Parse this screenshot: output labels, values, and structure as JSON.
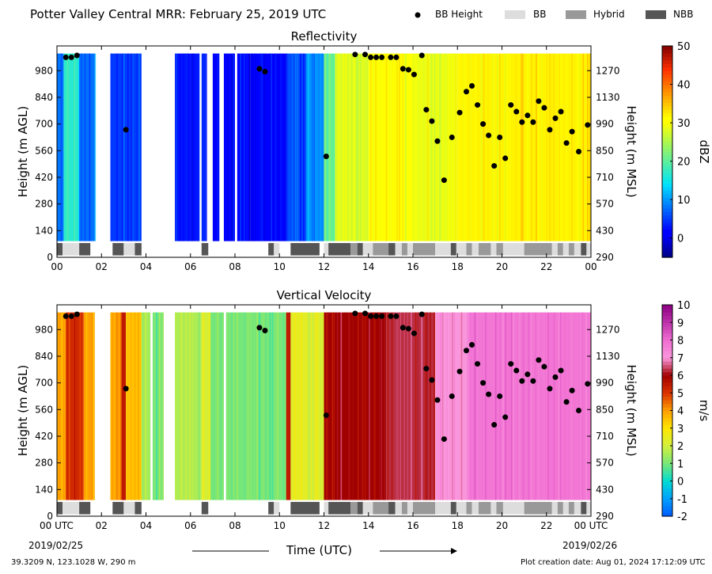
{
  "header": {
    "title": "Potter Valley Central MRR:  February 25, 2019 UTC",
    "legend": [
      {
        "label": "BB Height",
        "symbol": "dot",
        "color": "#000000"
      },
      {
        "label": "BB",
        "symbol": "box",
        "color": "#dddddd"
      },
      {
        "label": "Hybrid",
        "symbol": "box",
        "color": "#999999"
      },
      {
        "label": "NBB",
        "symbol": "box",
        "color": "#555555"
      }
    ]
  },
  "footer": {
    "location": "39.3209 N, 123.1028 W, 290 m",
    "created": "Plot creation date: Aug 01, 2024 17:12:09 UTC",
    "xlabel": "Time (UTC)",
    "start_tick": "00 UTC",
    "end_tick": "00 UTC",
    "start_date": "2019/02/25",
    "end_date": "2019/02/26"
  },
  "chart_data": [
    {
      "type": "heatmap",
      "title": "Reflectivity",
      "xlabel": "",
      "ylabel": "Height (m AGL)",
      "ylabel_right": "Height (m MSL)",
      "xlim": [
        0,
        24
      ],
      "ylim": [
        0,
        1110
      ],
      "xticks": [
        "00",
        "02",
        "04",
        "06",
        "08",
        "10",
        "12",
        "14",
        "16",
        "18",
        "20",
        "22",
        "00"
      ],
      "yticks": [
        0,
        140,
        280,
        420,
        560,
        700,
        840,
        980
      ],
      "yticks_right": [
        290,
        430,
        570,
        710,
        850,
        990,
        1130,
        1270
      ],
      "colorbar": {
        "label": "dBZ",
        "min": -5,
        "max": 50,
        "ticks": [
          0,
          10,
          20,
          30,
          40,
          50
        ]
      },
      "color_bands": [
        {
          "x": [
            0.0,
            0.3
          ],
          "value": 8
        },
        {
          "x": [
            0.3,
            1.0
          ],
          "value": 17
        },
        {
          "x": [
            1.0,
            1.7
          ],
          "value": 8
        },
        {
          "x": [
            2.4,
            3.8
          ],
          "value": 5
        },
        {
          "x": [
            5.3,
            6.4
          ],
          "value": 3
        },
        {
          "x": [
            6.5,
            6.7
          ],
          "value": 4
        },
        {
          "x": [
            7.0,
            7.3
          ],
          "value": 1
        },
        {
          "x": [
            7.5,
            8.0
          ],
          "value": 2
        },
        {
          "x": [
            8.1,
            8.7
          ],
          "value": 2
        },
        {
          "x": [
            8.7,
            9.6
          ],
          "value": 1
        },
        {
          "x": [
            9.6,
            10.3
          ],
          "value": 1
        },
        {
          "x": [
            10.3,
            11.2
          ],
          "value": 6
        },
        {
          "x": [
            11.2,
            12.0
          ],
          "value": 10
        },
        {
          "x": [
            12.0,
            12.5
          ],
          "value": 22
        },
        {
          "x": [
            12.5,
            14.0
          ],
          "value": 28
        },
        {
          "x": [
            14.0,
            16.0
          ],
          "value": 30
        },
        {
          "x": [
            16.0,
            18.0
          ],
          "value": 29
        },
        {
          "x": [
            18.0,
            24.0
          ],
          "value": 32
        }
      ],
      "data_bottom": 85,
      "bb_height": {
        "x": [
          0.4,
          0.65,
          0.9,
          3.1,
          9.1,
          9.35,
          12.1,
          13.4,
          13.85,
          14.1,
          14.35,
          14.6,
          15.0,
          15.25,
          15.55,
          15.8,
          16.05,
          16.4,
          16.6,
          16.85,
          17.1,
          17.4,
          17.75,
          18.1,
          18.4,
          18.65,
          18.9,
          19.15,
          19.4,
          19.65,
          19.9,
          20.15,
          20.4,
          20.65,
          20.9,
          21.15,
          21.4,
          21.65,
          21.9,
          22.15,
          22.4,
          22.65,
          22.9,
          23.15,
          23.45,
          23.85
        ],
        "y": [
          1050,
          1050,
          1060,
          670,
          990,
          975,
          530,
          1065,
          1065,
          1050,
          1050,
          1050,
          1050,
          1050,
          990,
          985,
          960,
          1060,
          775,
          715,
          610,
          405,
          630,
          760,
          870,
          900,
          800,
          700,
          640,
          480,
          630,
          520,
          800,
          765,
          710,
          745,
          710,
          820,
          785,
          670,
          730,
          765,
          600,
          660,
          555,
          695
        ]
      },
      "bb_type": [
        {
          "x": [
            0.0,
            0.25
          ],
          "type": "NBB"
        },
        {
          "x": [
            0.25,
            1.0
          ],
          "type": "BB"
        },
        {
          "x": [
            1.0,
            1.5
          ],
          "type": "NBB"
        },
        {
          "x": [
            2.5,
            3.0
          ],
          "type": "NBB"
        },
        {
          "x": [
            3.0,
            3.5
          ],
          "type": "BB"
        },
        {
          "x": [
            3.5,
            3.8
          ],
          "type": "NBB"
        },
        {
          "x": [
            6.5,
            6.8
          ],
          "type": "NBB"
        },
        {
          "x": [
            9.5,
            9.75
          ],
          "type": "NBB"
        },
        {
          "x": [
            9.75,
            10.0
          ],
          "type": "BB"
        },
        {
          "x": [
            10.5,
            11.8
          ],
          "type": "NBB"
        },
        {
          "x": [
            12.0,
            12.2
          ],
          "type": "BB"
        },
        {
          "x": [
            12.2,
            13.2
          ],
          "type": "NBB"
        },
        {
          "x": [
            13.2,
            13.5
          ],
          "type": "Hybrid"
        },
        {
          "x": [
            13.5,
            13.75
          ],
          "type": "NBB"
        },
        {
          "x": [
            13.75,
            14.2
          ],
          "type": "BB"
        },
        {
          "x": [
            14.2,
            14.9
          ],
          "type": "Hybrid"
        },
        {
          "x": [
            14.9,
            15.2
          ],
          "type": "NBB"
        },
        {
          "x": [
            15.2,
            15.5
          ],
          "type": "BB"
        },
        {
          "x": [
            15.5,
            15.75
          ],
          "type": "Hybrid"
        },
        {
          "x": [
            15.75,
            16.0
          ],
          "type": "BB"
        },
        {
          "x": [
            16.0,
            17.0
          ],
          "type": "Hybrid"
        },
        {
          "x": [
            17.0,
            17.7
          ],
          "type": "BB"
        },
        {
          "x": [
            17.7,
            17.95
          ],
          "type": "NBB"
        },
        {
          "x": [
            17.95,
            18.4
          ],
          "type": "BB"
        },
        {
          "x": [
            18.4,
            18.65
          ],
          "type": "Hybrid"
        },
        {
          "x": [
            18.65,
            18.95
          ],
          "type": "BB"
        },
        {
          "x": [
            18.95,
            19.5
          ],
          "type": "Hybrid"
        },
        {
          "x": [
            19.5,
            19.75
          ],
          "type": "BB"
        },
        {
          "x": [
            19.75,
            20.05
          ],
          "type": "Hybrid"
        },
        {
          "x": [
            20.05,
            21.0
          ],
          "type": "BB"
        },
        {
          "x": [
            21.0,
            22.25
          ],
          "type": "Hybrid"
        },
        {
          "x": [
            22.25,
            22.5
          ],
          "type": "BB"
        },
        {
          "x": [
            22.5,
            22.75
          ],
          "type": "Hybrid"
        },
        {
          "x": [
            22.75,
            23.0
          ],
          "type": "BB"
        },
        {
          "x": [
            23.0,
            23.25
          ],
          "type": "Hybrid"
        },
        {
          "x": [
            23.25,
            23.55
          ],
          "type": "BB"
        },
        {
          "x": [
            23.55,
            23.8
          ],
          "type": "NBB"
        },
        {
          "x": [
            23.8,
            24.0
          ],
          "type": "BB"
        }
      ]
    },
    {
      "type": "heatmap",
      "title": "Vertical Velocity",
      "xlabel": "Time (UTC)",
      "ylabel": "Height (m AGL)",
      "ylabel_right": "Height (m MSL)",
      "xlim": [
        0,
        24
      ],
      "ylim": [
        0,
        1110
      ],
      "xticks": [
        "00 UTC",
        "02",
        "04",
        "06",
        "08",
        "10",
        "12",
        "14",
        "16",
        "18",
        "20",
        "22",
        "00 UTC"
      ],
      "yticks": [
        0,
        140,
        280,
        420,
        560,
        700,
        840,
        980
      ],
      "yticks_right": [
        290,
        430,
        570,
        710,
        850,
        990,
        1130,
        1270
      ],
      "colorbar": {
        "label": "m/s",
        "min": -2,
        "max": 10,
        "ticks": [
          -2,
          -1,
          0,
          1,
          2,
          3,
          4,
          5,
          6,
          7,
          8,
          9,
          10
        ]
      },
      "color_bands": [
        {
          "x": [
            0.0,
            0.4
          ],
          "value": 4
        },
        {
          "x": [
            0.4,
            1.2
          ],
          "value": 5.2
        },
        {
          "x": [
            1.2,
            1.7
          ],
          "value": 4
        },
        {
          "x": [
            2.4,
            2.9
          ],
          "value": 4
        },
        {
          "x": [
            2.9,
            3.1
          ],
          "value": 5.5
        },
        {
          "x": [
            3.1,
            3.8
          ],
          "value": 3.5
        },
        {
          "x": [
            3.8,
            4.2
          ],
          "value": 1.5
        },
        {
          "x": [
            4.3,
            4.8
          ],
          "value": 1.0
        },
        {
          "x": [
            5.3,
            6.5
          ],
          "value": 1.6
        },
        {
          "x": [
            6.5,
            6.9
          ],
          "value": 2.2
        },
        {
          "x": [
            6.9,
            7.5
          ],
          "value": 1.0
        },
        {
          "x": [
            7.6,
            10.3
          ],
          "value": 1.0
        },
        {
          "x": [
            10.3,
            10.5
          ],
          "value": 5.5
        },
        {
          "x": [
            10.5,
            12.0
          ],
          "value": 2.4
        },
        {
          "x": [
            12.0,
            14.8
          ],
          "value": 6.0
        },
        {
          "x": [
            14.8,
            17.0
          ],
          "value": 6.3
        },
        {
          "x": [
            17.0,
            18.5
          ],
          "value": 7.0
        },
        {
          "x": [
            18.5,
            24.0
          ],
          "value": 7.8
        }
      ],
      "data_bottom": 85,
      "bb_height": {
        "x": [
          0.4,
          0.65,
          0.9,
          3.1,
          9.1,
          9.35,
          12.1,
          13.4,
          13.85,
          14.1,
          14.35,
          14.6,
          15.0,
          15.25,
          15.55,
          15.8,
          16.05,
          16.4,
          16.6,
          16.85,
          17.1,
          17.4,
          17.75,
          18.1,
          18.4,
          18.65,
          18.9,
          19.15,
          19.4,
          19.65,
          19.9,
          20.15,
          20.4,
          20.65,
          20.9,
          21.15,
          21.4,
          21.65,
          21.9,
          22.15,
          22.4,
          22.65,
          22.9,
          23.15,
          23.45,
          23.85
        ],
        "y": [
          1050,
          1050,
          1060,
          670,
          990,
          975,
          530,
          1065,
          1065,
          1050,
          1050,
          1050,
          1050,
          1050,
          990,
          985,
          960,
          1060,
          775,
          715,
          610,
          405,
          630,
          760,
          870,
          900,
          800,
          700,
          640,
          480,
          630,
          520,
          800,
          765,
          710,
          745,
          710,
          820,
          785,
          670,
          730,
          765,
          600,
          660,
          555,
          695
        ]
      },
      "bb_type": [
        {
          "x": [
            0.0,
            0.25
          ],
          "type": "NBB"
        },
        {
          "x": [
            0.25,
            1.0
          ],
          "type": "BB"
        },
        {
          "x": [
            1.0,
            1.5
          ],
          "type": "NBB"
        },
        {
          "x": [
            2.5,
            3.0
          ],
          "type": "NBB"
        },
        {
          "x": [
            3.0,
            3.5
          ],
          "type": "BB"
        },
        {
          "x": [
            3.5,
            3.8
          ],
          "type": "NBB"
        },
        {
          "x": [
            6.5,
            6.8
          ],
          "type": "NBB"
        },
        {
          "x": [
            9.5,
            9.75
          ],
          "type": "NBB"
        },
        {
          "x": [
            9.75,
            10.0
          ],
          "type": "BB"
        },
        {
          "x": [
            10.5,
            11.8
          ],
          "type": "NBB"
        },
        {
          "x": [
            12.0,
            12.2
          ],
          "type": "BB"
        },
        {
          "x": [
            12.2,
            13.2
          ],
          "type": "NBB"
        },
        {
          "x": [
            13.2,
            13.5
          ],
          "type": "Hybrid"
        },
        {
          "x": [
            13.5,
            13.75
          ],
          "type": "NBB"
        },
        {
          "x": [
            13.75,
            14.2
          ],
          "type": "BB"
        },
        {
          "x": [
            14.2,
            14.9
          ],
          "type": "Hybrid"
        },
        {
          "x": [
            14.9,
            15.2
          ],
          "type": "NBB"
        },
        {
          "x": [
            15.2,
            15.5
          ],
          "type": "BB"
        },
        {
          "x": [
            15.5,
            15.75
          ],
          "type": "Hybrid"
        },
        {
          "x": [
            15.75,
            16.0
          ],
          "type": "BB"
        },
        {
          "x": [
            16.0,
            17.0
          ],
          "type": "Hybrid"
        },
        {
          "x": [
            17.0,
            17.7
          ],
          "type": "BB"
        },
        {
          "x": [
            17.7,
            17.95
          ],
          "type": "NBB"
        },
        {
          "x": [
            17.95,
            18.4
          ],
          "type": "BB"
        },
        {
          "x": [
            18.4,
            18.65
          ],
          "type": "Hybrid"
        },
        {
          "x": [
            18.65,
            18.95
          ],
          "type": "BB"
        },
        {
          "x": [
            18.95,
            19.5
          ],
          "type": "Hybrid"
        },
        {
          "x": [
            19.5,
            19.75
          ],
          "type": "BB"
        },
        {
          "x": [
            19.75,
            20.05
          ],
          "type": "Hybrid"
        },
        {
          "x": [
            20.05,
            21.0
          ],
          "type": "BB"
        },
        {
          "x": [
            21.0,
            22.25
          ],
          "type": "Hybrid"
        },
        {
          "x": [
            22.25,
            22.5
          ],
          "type": "BB"
        },
        {
          "x": [
            22.5,
            22.75
          ],
          "type": "Hybrid"
        },
        {
          "x": [
            22.75,
            23.0
          ],
          "type": "BB"
        },
        {
          "x": [
            23.0,
            23.25
          ],
          "type": "Hybrid"
        },
        {
          "x": [
            23.25,
            23.55
          ],
          "type": "BB"
        },
        {
          "x": [
            23.55,
            23.8
          ],
          "type": "NBB"
        },
        {
          "x": [
            23.8,
            24.0
          ],
          "type": "BB"
        }
      ]
    }
  ]
}
